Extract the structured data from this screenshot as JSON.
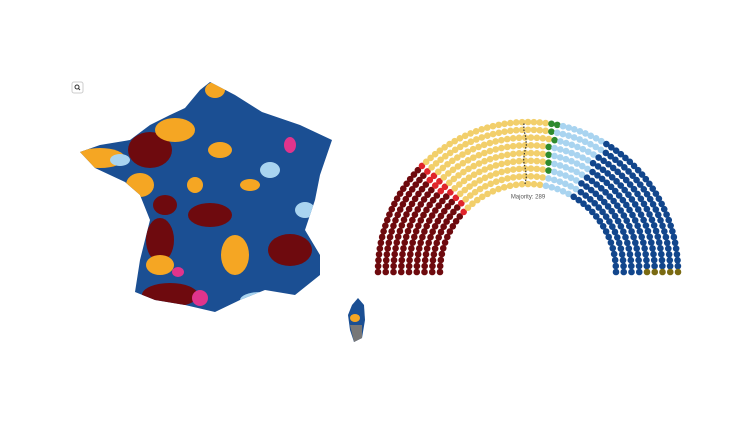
{
  "chart_data": {
    "type": "parliament",
    "annotation": "Majority: 289",
    "values": [
      140,
      12,
      165,
      8,
      60,
      187,
      5
    ],
    "colors": [
      "#6e0a0e",
      "#e0242b",
      "#f2cf6b",
      "#2e8b2e",
      "#a9d4f0",
      "#12468c",
      "#7a6a12"
    ]
  }
}
